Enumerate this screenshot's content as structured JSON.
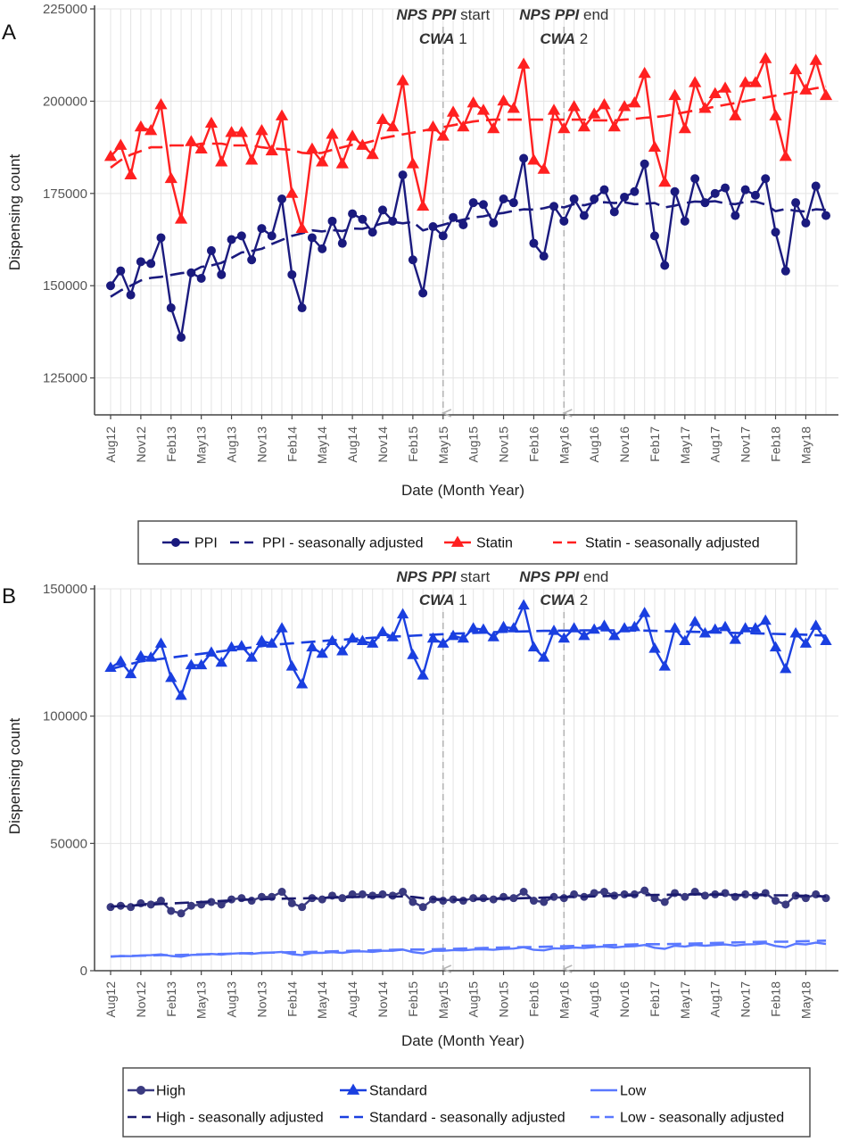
{
  "chart_data": [
    {
      "panel": "A",
      "type": "line",
      "xlabel": "Date (Month Year)",
      "ylabel": "Dispensing count",
      "ylim": [
        115000,
        225000
      ],
      "yticks": [
        125000,
        150000,
        175000,
        200000,
        225000
      ],
      "x_start": "Aug12",
      "x_months": 71,
      "xtick_labels": [
        "Aug12",
        "Nov12",
        "Feb13",
        "May13",
        "Aug13",
        "Nov13",
        "Feb14",
        "May14",
        "Aug14",
        "Nov14",
        "Feb15",
        "May15",
        "Aug15",
        "Nov15",
        "Feb16",
        "May16",
        "Aug16",
        "Nov16",
        "Feb17",
        "May17",
        "Aug17",
        "Nov17",
        "Feb18",
        "May18"
      ],
      "grid": true,
      "legend_placement": "bottom",
      "annotations": [
        {
          "x_label": "May15",
          "line1_italic": "NPS PPI",
          "line1_rest": " start",
          "line2_italic": "CWA",
          "line2_rest": " 1"
        },
        {
          "x_label": "May16",
          "line1_italic": "NPS PPI",
          "line1_rest": " end",
          "line2_italic": "CWA",
          "line2_rest": " 2"
        }
      ],
      "series": [
        {
          "name": "PPI",
          "style": "solid",
          "marker": "circle",
          "color": "#1a1a7e",
          "values": [
            150000,
            154000,
            147500,
            156500,
            156000,
            163000,
            144000,
            136000,
            153500,
            152000,
            159500,
            153000,
            162500,
            163500,
            157000,
            165500,
            163500,
            173500,
            153000,
            144000,
            163000,
            160000,
            167500,
            161500,
            169500,
            168000,
            164500,
            170500,
            167500,
            180000,
            157000,
            148000,
            166000,
            163500,
            168500,
            166500,
            172500,
            172000,
            167000,
            173500,
            172500,
            184500,
            161500,
            158000,
            171500,
            167500,
            173500,
            169000,
            173500,
            176000,
            170000,
            174000,
            175500,
            183000,
            163500,
            155500,
            175500,
            167500,
            179000,
            172500,
            175000,
            176500,
            169000,
            176000,
            174500,
            179000,
            164500,
            154000,
            172500,
            167000,
            177000,
            169000
          ]
        },
        {
          "name": "PPI - seasonally adjusted",
          "style": "dashed",
          "color": "#1a1a7e",
          "values": [
            147000,
            148700,
            150000,
            151400,
            152100,
            152400,
            152900,
            153400,
            153700,
            155100,
            155500,
            156200,
            157500,
            159000,
            159400,
            160000,
            161300,
            162400,
            163500,
            164200,
            165000,
            164700,
            165100,
            164800,
            165500,
            165400,
            166100,
            166900,
            167300,
            166900,
            167300,
            165000,
            165800,
            166500,
            167300,
            167900,
            168500,
            168800,
            169400,
            169700,
            170300,
            170700,
            170600,
            171000,
            171700,
            171200,
            172100,
            171800,
            172500,
            172600,
            172400,
            172600,
            172100,
            172200,
            172400,
            171200,
            171700,
            172400,
            172800,
            172700,
            172900,
            172300,
            172100,
            172700,
            172800,
            172000,
            170200,
            170800,
            170300,
            170100,
            170700,
            170500
          ]
        },
        {
          "name": "Statin",
          "style": "solid",
          "marker": "triangle",
          "color": "#ff2020",
          "values": [
            185000,
            188000,
            180000,
            193000,
            192000,
            199000,
            179000,
            168000,
            189000,
            187000,
            194000,
            183500,
            191500,
            191500,
            184000,
            192000,
            186500,
            196000,
            175000,
            165500,
            187000,
            183500,
            191000,
            183000,
            190500,
            188000,
            185500,
            195000,
            193000,
            205500,
            183000,
            171500,
            193000,
            190500,
            197000,
            193000,
            199500,
            197500,
            192500,
            200000,
            198000,
            210000,
            184000,
            181500,
            197500,
            192500,
            198500,
            193000,
            196500,
            199000,
            193000,
            198500,
            199500,
            207500,
            187500,
            178000,
            201500,
            192500,
            205000,
            198000,
            202000,
            203500,
            196000,
            205000,
            205000,
            211500,
            196000,
            185000,
            208500,
            203000,
            211000,
            201500
          ]
        },
        {
          "name": "Statin - seasonally adjusted",
          "style": "dashed",
          "color": "#ff2020",
          "values": [
            182000,
            184000,
            185500,
            186500,
            187500,
            187500,
            188000,
            188000,
            188000,
            188500,
            188500,
            188500,
            188000,
            188000,
            188000,
            187500,
            187200,
            187000,
            186800,
            186000,
            185800,
            186000,
            186800,
            187500,
            188200,
            188500,
            189200,
            190000,
            190500,
            191000,
            191500,
            192000,
            192500,
            193000,
            193500,
            194000,
            194500,
            194800,
            195000,
            195000,
            195000,
            195000,
            195000,
            195000,
            195000,
            195000,
            195000,
            195000,
            194800,
            194800,
            194800,
            195000,
            195200,
            195500,
            195700,
            196000,
            196500,
            197000,
            197500,
            198000,
            198500,
            199000,
            199500,
            200000,
            200500,
            201000,
            201500,
            202000,
            202500,
            203000,
            203500,
            204000
          ]
        }
      ]
    },
    {
      "panel": "B",
      "type": "line",
      "xlabel": "Date (Month Year)",
      "ylabel": "Dispensing count",
      "ylim": [
        0,
        150000
      ],
      "yticks": [
        0,
        50000,
        100000,
        150000
      ],
      "x_start": "Aug12",
      "x_months": 71,
      "xtick_labels": [
        "Aug12",
        "Nov12",
        "Feb13",
        "May13",
        "Aug13",
        "Nov13",
        "Feb14",
        "May14",
        "Aug14",
        "Nov14",
        "Feb15",
        "May15",
        "Aug15",
        "Nov15",
        "Feb16",
        "May16",
        "Aug16",
        "Nov16",
        "Feb17",
        "May17",
        "Aug17",
        "Nov17",
        "Feb18",
        "May18"
      ],
      "grid": true,
      "legend_placement": "bottom",
      "annotations": [
        {
          "x_label": "May15",
          "line1_italic": "NPS PPI",
          "line1_rest": " start",
          "line2_italic": "CWA",
          "line2_rest": " 1"
        },
        {
          "x_label": "May16",
          "line1_italic": "NPS PPI",
          "line1_rest": " end",
          "line2_italic": "CWA",
          "line2_rest": " 2"
        }
      ],
      "series": [
        {
          "name": "High",
          "style": "solid",
          "marker": "circle",
          "color": "#3a3a80",
          "values": [
            25000,
            25500,
            25000,
            26500,
            26000,
            27500,
            23500,
            22500,
            25500,
            26000,
            27000,
            26000,
            28000,
            28500,
            27500,
            29000,
            29000,
            31000,
            26500,
            25000,
            28500,
            28000,
            29500,
            28500,
            30000,
            30000,
            29500,
            30000,
            29500,
            31000,
            27000,
            25000,
            28000,
            27500,
            28000,
            27500,
            28500,
            28500,
            28000,
            29000,
            28500,
            31000,
            27500,
            27000,
            29000,
            28500,
            30000,
            29000,
            30500,
            31000,
            29500,
            30000,
            30000,
            31500,
            28500,
            27000,
            30500,
            29000,
            31000,
            29500,
            30000,
            30500,
            29000,
            30000,
            29500,
            30500,
            27500,
            26000,
            29500,
            28500,
            30000,
            28500
          ]
        },
        {
          "name": "High - seasonally adjusted",
          "style": "dashed",
          "color": "#1a1a6e",
          "values": [
            25200,
            25400,
            25600,
            25800,
            26000,
            26200,
            26400,
            26600,
            26800,
            27000,
            27200,
            27400,
            27600,
            27800,
            28000,
            28100,
            28200,
            28300,
            28400,
            28400,
            28500,
            28600,
            28700,
            28800,
            28900,
            29000,
            29000,
            29100,
            29100,
            29200,
            29000,
            28500,
            28200,
            28000,
            27900,
            27900,
            28000,
            28100,
            28200,
            28300,
            28400,
            28500,
            28600,
            28700,
            28800,
            28900,
            29000,
            29100,
            29200,
            29300,
            29400,
            29500,
            29600,
            29700,
            29800,
            29800,
            29900,
            29900,
            30000,
            30000,
            29900,
            29900,
            29800,
            29800,
            29700,
            29700,
            29600,
            29600,
            29500,
            29400,
            29300,
            29200
          ]
        },
        {
          "name": "Standard",
          "style": "solid",
          "marker": "triangle",
          "color": "#1a3fe0",
          "values": [
            119000,
            121500,
            116500,
            123500,
            123000,
            128500,
            115000,
            108000,
            120000,
            120000,
            125000,
            121000,
            127000,
            127500,
            123000,
            129500,
            128500,
            134500,
            119500,
            112500,
            127000,
            124500,
            129500,
            125500,
            130500,
            129500,
            128500,
            133000,
            131000,
            140000,
            124000,
            116000,
            130500,
            128500,
            131500,
            130500,
            134500,
            134000,
            131000,
            135000,
            134500,
            143500,
            127000,
            123000,
            133500,
            130500,
            134500,
            131500,
            134000,
            135500,
            131500,
            134500,
            135000,
            140500,
            126500,
            119500,
            134500,
            129500,
            137000,
            132500,
            134000,
            135000,
            130000,
            134500,
            134500,
            137500,
            127000,
            118500,
            132500,
            128500,
            135500,
            129500
          ]
        },
        {
          "name": "Standard - seasonally adjusted",
          "style": "dashed",
          "color": "#1a3fe0",
          "values": [
            118500,
            119500,
            120500,
            121500,
            122000,
            122500,
            123000,
            123500,
            124000,
            124500,
            125000,
            125500,
            126000,
            126500,
            127000,
            127500,
            128000,
            128300,
            128600,
            128900,
            129200,
            129500,
            129800,
            130000,
            130300,
            130500,
            130800,
            131000,
            131200,
            131400,
            131600,
            131800,
            132000,
            132200,
            132400,
            132500,
            132700,
            132800,
            133000,
            133100,
            133200,
            133300,
            133400,
            133500,
            133500,
            133600,
            133600,
            133700,
            133700,
            133700,
            133700,
            133700,
            133600,
            133600,
            133500,
            133400,
            133300,
            133200,
            133100,
            133000,
            132900,
            132800,
            132700,
            132600,
            132500,
            132400,
            132300,
            132200,
            132100,
            132000,
            131800,
            131600
          ]
        },
        {
          "name": "Low",
          "style": "solid",
          "marker": "none",
          "color": "#5a78ff",
          "values": [
            5500,
            5800,
            5700,
            6000,
            6100,
            6400,
            5800,
            5500,
            6200,
            6300,
            6600,
            6300,
            6700,
            6900,
            6600,
            7000,
            7100,
            7400,
            6500,
            6100,
            7000,
            7000,
            7300,
            7000,
            7500,
            7600,
            7400,
            7800,
            7800,
            8300,
            7300,
            6800,
            7800,
            7800,
            8100,
            8000,
            8300,
            8400,
            8200,
            8600,
            8700,
            9200,
            8200,
            8000,
            8800,
            8700,
            9100,
            8900,
            9300,
            9500,
            9100,
            9500,
            9600,
            10100,
            9000,
            8600,
            9800,
            9500,
            10100,
            9800,
            10100,
            10300,
            9900,
            10300,
            10400,
            10800,
            9700,
            9200,
            10600,
            10300,
            11000,
            10500
          ]
        },
        {
          "name": "Low - seasonally adjusted",
          "style": "dashed",
          "color": "#5a78ff",
          "values": [
            5600,
            5700,
            5800,
            5900,
            6000,
            6100,
            6100,
            6200,
            6300,
            6400,
            6500,
            6600,
            6700,
            6800,
            6900,
            7000,
            7100,
            7200,
            7300,
            7300,
            7400,
            7500,
            7600,
            7700,
            7800,
            7900,
            8000,
            8100,
            8200,
            8300,
            8300,
            8300,
            8400,
            8500,
            8600,
            8700,
            8800,
            8900,
            9000,
            9100,
            9200,
            9300,
            9300,
            9400,
            9500,
            9600,
            9700,
            9800,
            9900,
            10000,
            10100,
            10200,
            10300,
            10400,
            10400,
            10400,
            10500,
            10600,
            10700,
            10800,
            10900,
            11000,
            11100,
            11200,
            11300,
            11400,
            11400,
            11400,
            11500,
            11600,
            11700,
            11800
          ]
        }
      ]
    }
  ]
}
